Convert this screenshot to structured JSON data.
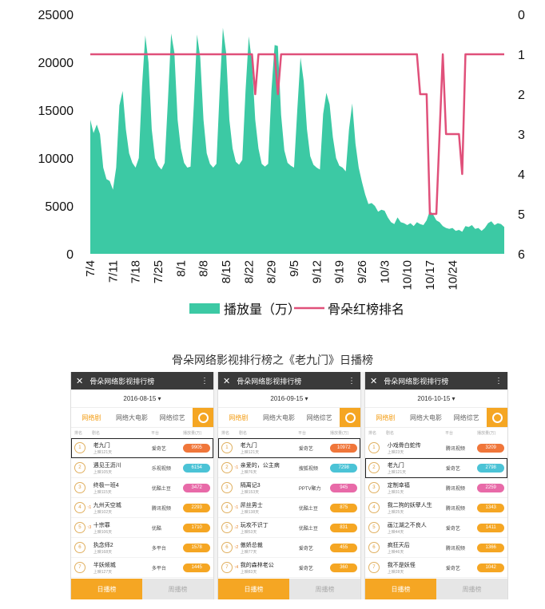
{
  "chart_data": {
    "type": "area",
    "x_ticks": [
      "7/4",
      "7/11",
      "7/18",
      "7/25",
      "8/1",
      "8/8",
      "8/15",
      "8/22",
      "8/29",
      "9/5",
      "9/12",
      "9/19",
      "9/26",
      "10/3",
      "10/10",
      "10/17",
      "10/24"
    ],
    "x_start": "7/4",
    "y_left": {
      "min": 0,
      "max": 25000,
      "ticks": [
        0,
        5000,
        10000,
        15000,
        20000,
        25000
      ]
    },
    "y_right": {
      "min": 0,
      "max": 6,
      "ticks": [
        0,
        1,
        2,
        3,
        4,
        5,
        6
      ],
      "inverted": true
    },
    "series": [
      {
        "name": "播放量（万）",
        "type": "area",
        "axis": "left",
        "color": "#3cc9a4",
        "values": [
          14000,
          12600,
          13500,
          12500,
          9000,
          7800,
          7600,
          6700,
          9000,
          15500,
          17000,
          13000,
          10500,
          9500,
          9000,
          10000,
          17500,
          22800,
          20000,
          13000,
          10000,
          9200,
          8800,
          9500,
          16000,
          23000,
          21000,
          14000,
          11000,
          9500,
          9000,
          9100,
          15500,
          22900,
          20500,
          14000,
          10500,
          9400,
          9000,
          9400,
          17000,
          23600,
          21000,
          14000,
          11000,
          9600,
          9300,
          9800,
          17000,
          22700,
          20000,
          14000,
          11000,
          9400,
          9100,
          9400,
          17000,
          21800,
          21700,
          14500,
          10800,
          9500,
          9200,
          9000,
          15000,
          20500,
          18000,
          13000,
          10200,
          9300,
          9000,
          8800,
          14600,
          16800,
          15600,
          12200,
          10000,
          9200,
          9000,
          8600,
          13000,
          15700,
          11500,
          9000,
          7500,
          6200,
          5200,
          5300,
          5000,
          4400,
          4600,
          4500,
          3800,
          3300,
          3100,
          3800,
          3300,
          3200,
          3000,
          3200,
          2900,
          3300,
          3100,
          3000,
          3500,
          4500,
          4100,
          3500,
          3300,
          2900,
          2700,
          2600,
          2700,
          2400,
          2500,
          2300,
          2900,
          2800,
          3000,
          2600,
          2700,
          2400,
          2700,
          3200,
          3400,
          3000,
          3200,
          3100,
          2800
        ]
      },
      {
        "name": "骨朵红榜排名",
        "type": "line",
        "axis": "right",
        "color": "#e0507a",
        "values": [
          1,
          1,
          1,
          1,
          1,
          1,
          1,
          1,
          1,
          1,
          1,
          1,
          1,
          1,
          1,
          1,
          1,
          1,
          1,
          1,
          1,
          1,
          1,
          1,
          1,
          1,
          1,
          1,
          1,
          1,
          1,
          1,
          1,
          1,
          1,
          1,
          1,
          1,
          1,
          1,
          1,
          1,
          1,
          1,
          1,
          1,
          1,
          1,
          1,
          1,
          1,
          1,
          1,
          1,
          1,
          1,
          1,
          1,
          1,
          1,
          1,
          1,
          1,
          1,
          1,
          1,
          1,
          1,
          1,
          1,
          1,
          1,
          1,
          1,
          1,
          1,
          1,
          1,
          1,
          1,
          1,
          1,
          1,
          1,
          1,
          1,
          1,
          1,
          1,
          1,
          1,
          1,
          1,
          1,
          1,
          1,
          1,
          1,
          1,
          1,
          1,
          1,
          1,
          1,
          1,
          1,
          1,
          1,
          1,
          1,
          1,
          1,
          1,
          1,
          1,
          1,
          1,
          1,
          1,
          1,
          1,
          1,
          1,
          1,
          1,
          1,
          1,
          1,
          1
        ],
        "overrides": [
          [
            51,
            2
          ],
          [
            58,
            2
          ],
          [
            102,
            2
          ],
          [
            103,
            2
          ],
          [
            104,
            2
          ],
          [
            105,
            5
          ],
          [
            106,
            5
          ],
          [
            107,
            5
          ],
          [
            108,
            3
          ],
          [
            109,
            1
          ],
          [
            110,
            3
          ],
          [
            111,
            3
          ],
          [
            112,
            3
          ],
          [
            113,
            3
          ],
          [
            114,
            3
          ],
          [
            115,
            4
          ]
        ]
      }
    ],
    "legend": {
      "placement": "bottom",
      "entries": [
        "播放量（万）",
        "骨朵红榜排名"
      ]
    }
  },
  "caption": "骨朵网络影视排行榜之《老九门》日播榜",
  "phones": [
    {
      "header": "骨朵网络影视排行榜",
      "date": "2016-08-15 ▾",
      "tabs": [
        "网络剧",
        "网络大电影",
        "网络综艺"
      ],
      "cols": [
        "排名",
        "剧名",
        "平台",
        "播放量(万)"
      ],
      "rows": [
        {
          "rank": "1",
          "arrow": "",
          "name": "老九门",
          "sub": "上映121天",
          "platform": "爱奇艺",
          "value": "9905",
          "color": "#f0763a",
          "hl": true
        },
        {
          "rank": "2",
          "arrow": "",
          "name": "遇见王沥川",
          "sub": "上映105天",
          "platform": "乐视视频",
          "value": "6154",
          "color": "#4bc3d6",
          "hl": false
        },
        {
          "rank": "3",
          "arrow": "",
          "name": "终极一班4",
          "sub": "上映115天",
          "platform": "优酷土豆",
          "value": "3472",
          "color": "#e86aa8",
          "hl": false
        },
        {
          "rank": "4",
          "arrow": "↑1",
          "name": "九州天空城",
          "sub": "上映102天",
          "platform": "腾讯视频",
          "value": "2293",
          "color": "#f5a623",
          "hl": false
        },
        {
          "rank": "5",
          "arrow": "↑3",
          "name": "十宗罪",
          "sub": "上映106天",
          "platform": "优酷",
          "value": "1710",
          "color": "#f5a623",
          "hl": false
        },
        {
          "rank": "6",
          "arrow": "",
          "name": "执念师2",
          "sub": "上映168天",
          "platform": "多平台",
          "value": "1578",
          "color": "#f5a623",
          "hl": false
        },
        {
          "rank": "7",
          "arrow": "",
          "name": "半妖倾城",
          "sub": "上映127天",
          "platform": "多平台",
          "value": "1445",
          "color": "#f5a623",
          "hl": false
        }
      ],
      "footer": [
        "日播榜",
        "周播榜"
      ]
    },
    {
      "header": "骨朵网络影视排行榜",
      "date": "2016-09-15 ▾",
      "tabs": [
        "网络剧",
        "网络大电影",
        "网络综艺"
      ],
      "cols": [
        "排名",
        "剧名",
        "平台",
        "播放量(万)"
      ],
      "rows": [
        {
          "rank": "1",
          "arrow": "",
          "name": "老九门",
          "sub": "上映121天",
          "platform": "爱奇艺",
          "value": "10972",
          "color": "#f0763a",
          "hl": true
        },
        {
          "rank": "2",
          "arrow": "↑1",
          "name": "亲爱的，公主病",
          "sub": "上映76天",
          "platform": "搜狐视频",
          "value": "7298",
          "color": "#4bc3d6",
          "hl": false
        },
        {
          "rank": "3",
          "arrow": "",
          "name": "隔离记3",
          "sub": "上映153天",
          "platform": "PPTV聚力",
          "value": "945",
          "color": "#e86aa8",
          "hl": false
        },
        {
          "rank": "4",
          "arrow": "↑1",
          "name": "屌丝男士",
          "sub": "上映138天",
          "platform": "优酷土豆",
          "value": "875",
          "color": "#f5a623",
          "hl": false
        },
        {
          "rank": "5",
          "arrow": "↓2",
          "name": "玩攻不识丁",
          "sub": "上映53天",
          "platform": "优酷土豆",
          "value": "831",
          "color": "#f5a623",
          "hl": false
        },
        {
          "rank": "6",
          "arrow": "↑2",
          "name": "傲娇总裁",
          "sub": "上映77天",
          "platform": "爱奇艺",
          "value": "455",
          "color": "#f5a623",
          "hl": false
        },
        {
          "rank": "7",
          "arrow": "↑4",
          "name": "我的森林老公",
          "sub": "上映83天",
          "platform": "爱奇艺",
          "value": "360",
          "color": "#f5a623",
          "hl": false
        }
      ],
      "footer": [
        "日播榜",
        "周播榜"
      ]
    },
    {
      "header": "骨朵网络影视排行榜",
      "date": "2016-10-15 ▾",
      "tabs": [
        "网络剧",
        "网络大电影",
        "网络综艺"
      ],
      "cols": [
        "排名",
        "剧名",
        "平台",
        "播放量(万)"
      ],
      "rows": [
        {
          "rank": "1",
          "arrow": "",
          "name": "小戏骨白蛇传",
          "sub": "上映23天",
          "platform": "腾讯视频",
          "value": "3209",
          "color": "#f0763a",
          "hl": false
        },
        {
          "rank": "2",
          "arrow": "",
          "name": "老九门",
          "sub": "上映121天",
          "platform": "爱奇艺",
          "value": "2798",
          "color": "#4bc3d6",
          "hl": true
        },
        {
          "rank": "3",
          "arrow": "",
          "name": "定制幸福",
          "sub": "上映31天",
          "platform": "腾讯视频",
          "value": "2259",
          "color": "#e86aa8",
          "hl": false
        },
        {
          "rank": "4",
          "arrow": "",
          "name": "我二狗的妖孽人生",
          "sub": "上映25天",
          "platform": "腾讯视频",
          "value": "1343",
          "color": "#f5a623",
          "hl": false
        },
        {
          "rank": "5",
          "arrow": "",
          "name": "画江湖之不良人",
          "sub": "上映44天",
          "platform": "爱奇艺",
          "value": "1411",
          "color": "#f5a623",
          "hl": false
        },
        {
          "rank": "6",
          "arrow": "",
          "name": "疯狂天后",
          "sub": "上映46天",
          "platform": "腾讯视频",
          "value": "1366",
          "color": "#f5a623",
          "hl": false
        },
        {
          "rank": "7",
          "arrow": "",
          "name": "我不是妖怪",
          "sub": "上映28天",
          "platform": "爱奇艺",
          "value": "1042",
          "color": "#f5a623",
          "hl": false
        }
      ],
      "footer": [
        "日播榜",
        "周播榜"
      ]
    }
  ]
}
